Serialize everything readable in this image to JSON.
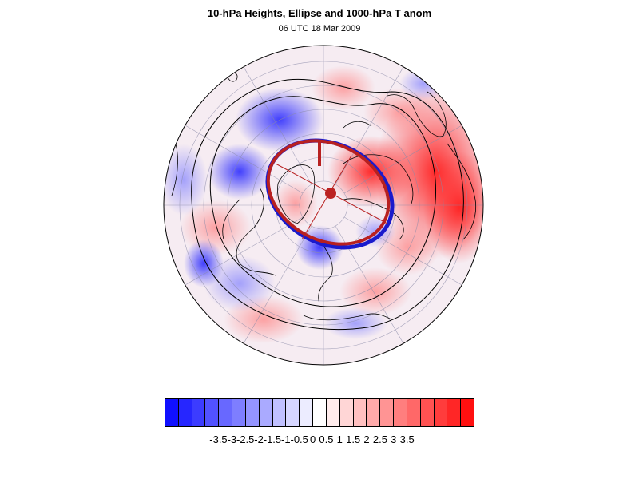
{
  "title": "10-hPa Heights, Ellipse and 1000-hPa T anom",
  "subtitle": "06 UTC 18 Mar 2009",
  "colorbar": {
    "colors": [
      "#1010ff",
      "#2626ff",
      "#3c3cff",
      "#5252ff",
      "#6868ff",
      "#7e7eff",
      "#9494ff",
      "#aaaaff",
      "#c0c0ff",
      "#d6d6ff",
      "#ececff",
      "#ffffff",
      "#ffecec",
      "#ffd6d6",
      "#ffc0c0",
      "#ffaaaa",
      "#ff9494",
      "#ff7e7e",
      "#ff6868",
      "#ff5252",
      "#ff3c3c",
      "#ff2626",
      "#ff1010"
    ],
    "labels": [
      "-3.5",
      "-3",
      "-2.5",
      "-2",
      "-1.5",
      "-1",
      "-0.5",
      "0",
      "0.5",
      "1",
      "1.5",
      "2",
      "2.5",
      "3",
      "3.5"
    ]
  },
  "map": {
    "projection": "orthographic-polar-north",
    "ellipse_colors": {
      "outer": "#cc2222",
      "inner": "#1a1acc",
      "center": "#bb2222"
    },
    "contour_color": "#000000"
  }
}
